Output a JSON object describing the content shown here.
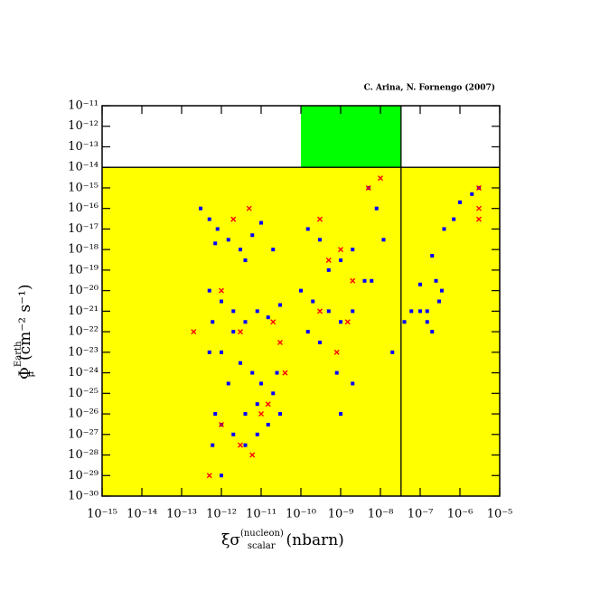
{
  "chart_data": {
    "type": "scatter",
    "credit": "C. Arina, N. Fornengo (2007)",
    "x_label": {
      "symbol": "ξσ",
      "sub": "scalar",
      "sup": "(nucleon)",
      "unit": "(nbarn)"
    },
    "y_label": {
      "symbol": "Φ",
      "sub": "μ",
      "sup": "Earth",
      "unit": "(cm⁻² s⁻¹)"
    },
    "log_x": true,
    "log_y": true,
    "xlim": [
      1e-15,
      1e-05
    ],
    "ylim": [
      1e-30,
      1e-11
    ],
    "xticks": [
      {
        "value": 1e-15,
        "label": "10⁻¹⁵"
      },
      {
        "value": 1e-14,
        "label": "10⁻¹⁴"
      },
      {
        "value": 1e-13,
        "label": "10⁻¹³"
      },
      {
        "value": 1e-12,
        "label": "10⁻¹²"
      },
      {
        "value": 1e-11,
        "label": "10⁻¹¹"
      },
      {
        "value": 1e-10,
        "label": "10⁻¹⁰"
      },
      {
        "value": 1e-09,
        "label": "10⁻⁹"
      },
      {
        "value": 1e-08,
        "label": "10⁻⁸"
      },
      {
        "value": 1e-07,
        "label": "10⁻⁷"
      },
      {
        "value": 1e-06,
        "label": "10⁻⁶"
      },
      {
        "value": 1e-05,
        "label": "10⁻⁵"
      }
    ],
    "yticks": [
      {
        "value": 1e-11,
        "label": "10⁻¹¹"
      },
      {
        "value": 1e-12,
        "label": "10⁻¹²"
      },
      {
        "value": 1e-13,
        "label": "10⁻¹³"
      },
      {
        "value": 1e-14,
        "label": "10⁻¹⁴"
      },
      {
        "value": 1e-15,
        "label": "10⁻¹⁵"
      },
      {
        "value": 1e-16,
        "label": "10⁻¹⁶"
      },
      {
        "value": 1e-17,
        "label": "10⁻¹⁷"
      },
      {
        "value": 1e-18,
        "label": "10⁻¹⁸"
      },
      {
        "value": 1e-19,
        "label": "10⁻¹⁹"
      },
      {
        "value": 1e-20,
        "label": "10⁻²⁰"
      },
      {
        "value": 1e-21,
        "label": "10⁻²¹"
      },
      {
        "value": 1e-22,
        "label": "10⁻²²"
      },
      {
        "value": 1e-23,
        "label": "10⁻²³"
      },
      {
        "value": 1e-24,
        "label": "10⁻²⁴"
      },
      {
        "value": 1e-25,
        "label": "10⁻²⁵"
      },
      {
        "value": 1e-26,
        "label": "10⁻²⁶"
      },
      {
        "value": 1e-27,
        "label": "10⁻²⁷"
      },
      {
        "value": 1e-28,
        "label": "10⁻²⁸"
      },
      {
        "value": 1e-29,
        "label": "10⁻²⁹"
      },
      {
        "value": 1e-30,
        "label": "10⁻³⁰"
      }
    ],
    "regions": [
      {
        "color": "#ffff00",
        "x": [
          1e-15,
          1e-05
        ],
        "y": [
          1e-30,
          1e-14
        ]
      },
      {
        "color": "#00ff00",
        "x": [
          1e-10,
          3.3e-08
        ],
        "y": [
          1e-14,
          1e-11
        ]
      }
    ],
    "hline": 1e-14,
    "vline": 3.3e-08,
    "series": [
      {
        "color": "#0000ff",
        "marker": "square",
        "x": [
          3e-13,
          5e-13,
          8e-13,
          1.5e-12,
          3e-12,
          6e-12,
          1e-11,
          2e-11,
          4e-12,
          7e-13,
          5e-13,
          1e-12,
          2e-12,
          4e-12,
          8e-12,
          1.5e-11,
          3e-11,
          2e-12,
          6e-13,
          1e-12,
          3e-12,
          6e-12,
          1e-11,
          2e-11,
          1.5e-12,
          4e-12,
          8e-12,
          1.5e-11,
          7e-13,
          1e-12,
          2e-12,
          4e-12,
          8e-12,
          6e-13,
          1e-12,
          2.5e-11,
          3e-11,
          5e-13,
          1.5e-10,
          3e-10,
          5e-10,
          1e-09,
          2e-09,
          4e-09,
          1e-10,
          2e-10,
          5e-10,
          1e-09,
          2e-09,
          1.5e-10,
          3e-10,
          8e-10,
          2e-09,
          1e-09,
          5e-09,
          6e-09,
          1.2e-08,
          8e-09,
          2e-08,
          4e-08,
          6e-08,
          1e-07,
          2e-07,
          4e-07,
          7e-07,
          1e-06,
          2e-06,
          3e-06,
          1e-07,
          1.5e-07,
          2e-07,
          3e-07,
          3.5e-07,
          2.5e-07,
          1.5e-07
        ],
        "values": [
          1e-16,
          3e-17,
          1e-17,
          3e-18,
          1e-18,
          5e-18,
          2e-17,
          1e-18,
          3e-19,
          2e-18,
          1e-20,
          3e-21,
          1e-21,
          3e-22,
          1e-21,
          5e-22,
          2e-21,
          1e-22,
          3e-22,
          1e-23,
          3e-24,
          1e-24,
          3e-25,
          1e-25,
          3e-25,
          1e-26,
          3e-26,
          3e-27,
          1e-26,
          3e-27,
          1e-27,
          3e-28,
          1e-27,
          3e-28,
          1e-29,
          1e-24,
          1e-26,
          1e-23,
          1e-17,
          3e-18,
          1e-19,
          3e-19,
          1e-18,
          3e-20,
          1e-20,
          3e-21,
          1e-21,
          3e-22,
          1e-21,
          1e-22,
          3e-23,
          1e-24,
          3e-25,
          1e-26,
          1e-15,
          3e-20,
          3e-18,
          1e-16,
          1e-23,
          3e-22,
          1e-21,
          2e-20,
          5e-19,
          1e-17,
          3e-17,
          2e-16,
          5e-16,
          1e-15,
          1e-21,
          3e-22,
          1e-22,
          3e-21,
          1e-20,
          3e-20,
          1e-21
        ]
      },
      {
        "color": "#ff0000",
        "marker": "x",
        "x": [
          2e-12,
          5e-12,
          1e-12,
          3e-12,
          2e-11,
          4e-11,
          1e-11,
          3e-12,
          5e-13,
          1e-12,
          6e-12,
          1.5e-11,
          5e-10,
          1e-09,
          2e-09,
          3e-10,
          1.5e-09,
          5e-09,
          1e-08,
          3e-10,
          8e-10,
          3e-06,
          3e-06,
          3e-06,
          2e-13,
          3e-11
        ],
        "values": [
          3e-17,
          1e-16,
          1e-20,
          1e-22,
          3e-22,
          1e-24,
          1e-26,
          3e-28,
          1e-29,
          3e-27,
          1e-28,
          3e-26,
          3e-19,
          1e-18,
          3e-20,
          1e-21,
          3e-22,
          1e-15,
          3e-15,
          3e-17,
          1e-23,
          3e-17,
          1e-16,
          1e-15,
          1e-22,
          3e-23
        ]
      }
    ]
  }
}
